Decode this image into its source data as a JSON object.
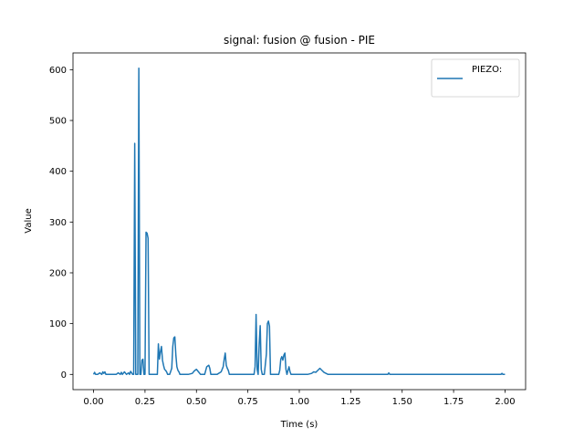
{
  "chart_data": {
    "type": "line",
    "title": "signal: fusion @ fusion - PIE",
    "xlabel": "Time (s)",
    "ylabel": "Value",
    "xlim": [
      -0.1,
      2.1
    ],
    "ylim": [
      -30,
      633
    ],
    "xticks": [
      0.0,
      0.25,
      0.5,
      0.75,
      1.0,
      1.25,
      1.5,
      1.75,
      2.0
    ],
    "xtick_labels": [
      "0.00",
      "0.25",
      "0.50",
      "0.75",
      "1.00",
      "1.25",
      "1.50",
      "1.75",
      "2.00"
    ],
    "yticks": [
      0,
      100,
      200,
      300,
      400,
      500,
      600
    ],
    "ytick_labels": [
      "0",
      "100",
      "200",
      "300",
      "400",
      "500",
      "600"
    ],
    "grid": false,
    "legend_position": "top-right",
    "series": [
      {
        "name": "PIEZO:",
        "color": "#1f77b4",
        "x": [
          0.0,
          0.005,
          0.01,
          0.02,
          0.03,
          0.04,
          0.045,
          0.05,
          0.055,
          0.06,
          0.07,
          0.08,
          0.09,
          0.1,
          0.11,
          0.12,
          0.13,
          0.135,
          0.14,
          0.15,
          0.16,
          0.17,
          0.175,
          0.18,
          0.19,
          0.195,
          0.2,
          0.205,
          0.21,
          0.215,
          0.22,
          0.225,
          0.23,
          0.235,
          0.24,
          0.245,
          0.25,
          0.255,
          0.26,
          0.265,
          0.27,
          0.275,
          0.28,
          0.285,
          0.29,
          0.3,
          0.31,
          0.315,
          0.32,
          0.325,
          0.33,
          0.335,
          0.34,
          0.345,
          0.35,
          0.355,
          0.36,
          0.37,
          0.38,
          0.385,
          0.39,
          0.395,
          0.4,
          0.405,
          0.41,
          0.415,
          0.42,
          0.425,
          0.43,
          0.44,
          0.46,
          0.48,
          0.49,
          0.5,
          0.51,
          0.52,
          0.54,
          0.55,
          0.56,
          0.565,
          0.57,
          0.58,
          0.6,
          0.62,
          0.63,
          0.635,
          0.64,
          0.645,
          0.65,
          0.655,
          0.66,
          0.68,
          0.7,
          0.72,
          0.74,
          0.76,
          0.78,
          0.785,
          0.79,
          0.795,
          0.8,
          0.805,
          0.81,
          0.815,
          0.82,
          0.83,
          0.84,
          0.845,
          0.85,
          0.855,
          0.86,
          0.865,
          0.87,
          0.88,
          0.9,
          0.905,
          0.91,
          0.915,
          0.92,
          0.925,
          0.93,
          0.935,
          0.94,
          0.945,
          0.95,
          0.955,
          0.96,
          0.98,
          1.0,
          1.02,
          1.04,
          1.06,
          1.07,
          1.08,
          1.09,
          1.1,
          1.105,
          1.11,
          1.12,
          1.13,
          1.14,
          1.2,
          1.3,
          1.4,
          1.43,
          1.435,
          1.44,
          1.5,
          1.6,
          1.7,
          1.8,
          1.9,
          1.98,
          1.985,
          1.99,
          2.0
        ],
        "y": [
          0,
          4,
          0,
          0,
          3,
          0,
          5,
          2,
          5,
          0,
          0,
          0,
          0,
          0,
          0,
          3,
          0,
          4,
          0,
          5,
          0,
          3,
          0,
          6,
          0,
          0,
          455,
          0,
          0,
          0,
          603,
          0,
          0,
          28,
          30,
          0,
          0,
          280,
          278,
          268,
          0,
          0,
          0,
          0,
          0,
          0,
          0,
          60,
          30,
          45,
          55,
          28,
          18,
          10,
          8,
          5,
          0,
          0,
          12,
          55,
          72,
          74,
          38,
          15,
          8,
          5,
          0,
          0,
          0,
          0,
          0,
          2,
          7,
          10,
          5,
          0,
          0,
          15,
          18,
          12,
          0,
          0,
          0,
          5,
          15,
          30,
          42,
          18,
          12,
          8,
          0,
          0,
          0,
          0,
          0,
          0,
          0,
          15,
          118,
          10,
          0,
          60,
          96,
          10,
          0,
          0,
          40,
          100,
          105,
          95,
          0,
          0,
          0,
          0,
          0,
          8,
          30,
          35,
          28,
          38,
          42,
          10,
          0,
          8,
          15,
          5,
          0,
          0,
          0,
          0,
          0,
          2,
          5,
          4,
          8,
          12,
          10,
          8,
          4,
          2,
          0,
          0,
          0,
          0,
          0,
          3,
          0,
          0,
          0,
          0,
          0,
          0,
          0,
          2,
          0,
          0
        ]
      }
    ]
  }
}
